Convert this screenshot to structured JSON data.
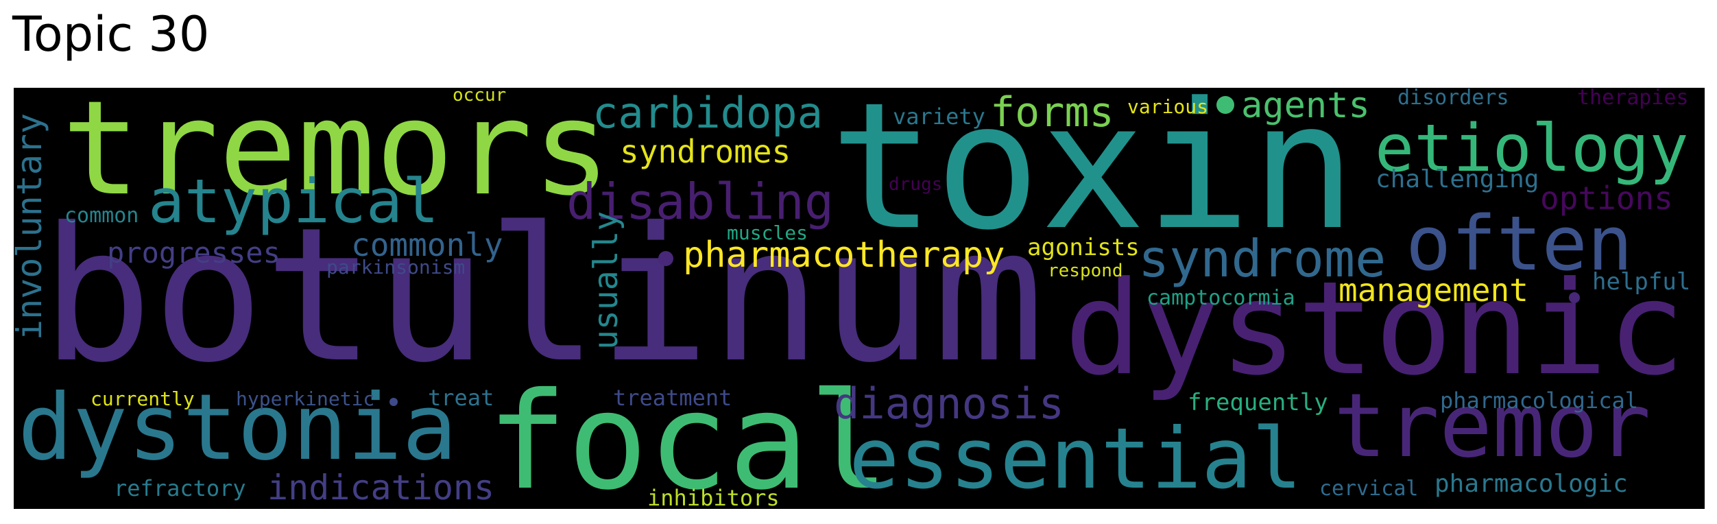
{
  "title": "Topic 30",
  "colors": {
    "lime": "#8fd744",
    "green": "#3fbc73",
    "teal": "#21918c",
    "tealblue": "#2a788e",
    "blue": "#355f8d",
    "indigo": "#3e4a89",
    "purple": "#482878",
    "darkpurple": "#440154",
    "yellow": "#fde725",
    "yellowgreen": "#b5de2b"
  },
  "words": [
    {
      "text": "botulinum",
      "color": "#472d7b"
    },
    {
      "text": "toxin",
      "color": "#21918c"
    },
    {
      "text": "dystonic",
      "color": "#482173"
    },
    {
      "text": "tremors",
      "color": "#8fd744"
    },
    {
      "text": "focal",
      "color": "#3fbc73"
    },
    {
      "text": "dystonia",
      "color": "#2a788e"
    },
    {
      "text": "essential",
      "color": "#26828e"
    },
    {
      "text": "tremor",
      "color": "#482677"
    },
    {
      "text": "often",
      "color": "#3b528b"
    },
    {
      "text": "etiology",
      "color": "#35b779"
    },
    {
      "text": "atypical",
      "color": "#25848e"
    },
    {
      "text": "syndrome",
      "color": "#31688e"
    },
    {
      "text": "disabling",
      "color": "#481f70"
    },
    {
      "text": "carbidopa",
      "color": "#228c8d"
    },
    {
      "text": "diagnosis",
      "color": "#453781"
    },
    {
      "text": "forms",
      "color": "#7ad151"
    },
    {
      "text": "indications",
      "color": "#433e85"
    },
    {
      "text": "pharmacotherapy",
      "color": "#fde725"
    },
    {
      "text": "involuntary",
      "color": "#2c728e"
    },
    {
      "text": "usually",
      "color": "#23888e"
    },
    {
      "text": "syndromes",
      "color": "#e5e419"
    },
    {
      "text": "agents",
      "color": "#4ac16d"
    },
    {
      "text": "management",
      "color": "#f1e51d"
    },
    {
      "text": "commonly",
      "color": "#33638d"
    },
    {
      "text": "progresses",
      "color": "#433e85"
    },
    {
      "text": "options",
      "color": "#46085c"
    },
    {
      "text": "pharmacologic",
      "color": "#2a788e"
    },
    {
      "text": "challenging",
      "color": "#2d708e"
    },
    {
      "text": "pharmacological",
      "color": "#31688e"
    },
    {
      "text": "frequently",
      "color": "#29af7f"
    },
    {
      "text": "helpful",
      "color": "#2e6e8e"
    },
    {
      "text": "camptocormia",
      "color": "#1fa187"
    },
    {
      "text": "agonists",
      "color": "#e2e418"
    },
    {
      "text": "variety",
      "color": "#2a788e"
    },
    {
      "text": "various",
      "color": "#e5e419"
    },
    {
      "text": "disorders",
      "color": "#2d708e"
    },
    {
      "text": "therapies",
      "color": "#440154"
    },
    {
      "text": "muscles",
      "color": "#22a884"
    },
    {
      "text": "parkinsonism",
      "color": "#3e4a89"
    },
    {
      "text": "treatment",
      "color": "#3e4a89"
    },
    {
      "text": "treat",
      "color": "#2c728e"
    },
    {
      "text": "hyperkinetic",
      "color": "#3b528b"
    },
    {
      "text": "currently",
      "color": "#dde318"
    },
    {
      "text": "refractory",
      "color": "#287c8e"
    },
    {
      "text": "inhibitors",
      "color": "#bddf26"
    },
    {
      "text": "cervical",
      "color": "#2f6b8e"
    },
    {
      "text": "common",
      "color": "#25858e"
    },
    {
      "text": "respond",
      "color": "#d8e219"
    },
    {
      "text": "drugs",
      "color": "#440154"
    },
    {
      "text": "occur",
      "color": "#d5e21a"
    }
  ]
}
